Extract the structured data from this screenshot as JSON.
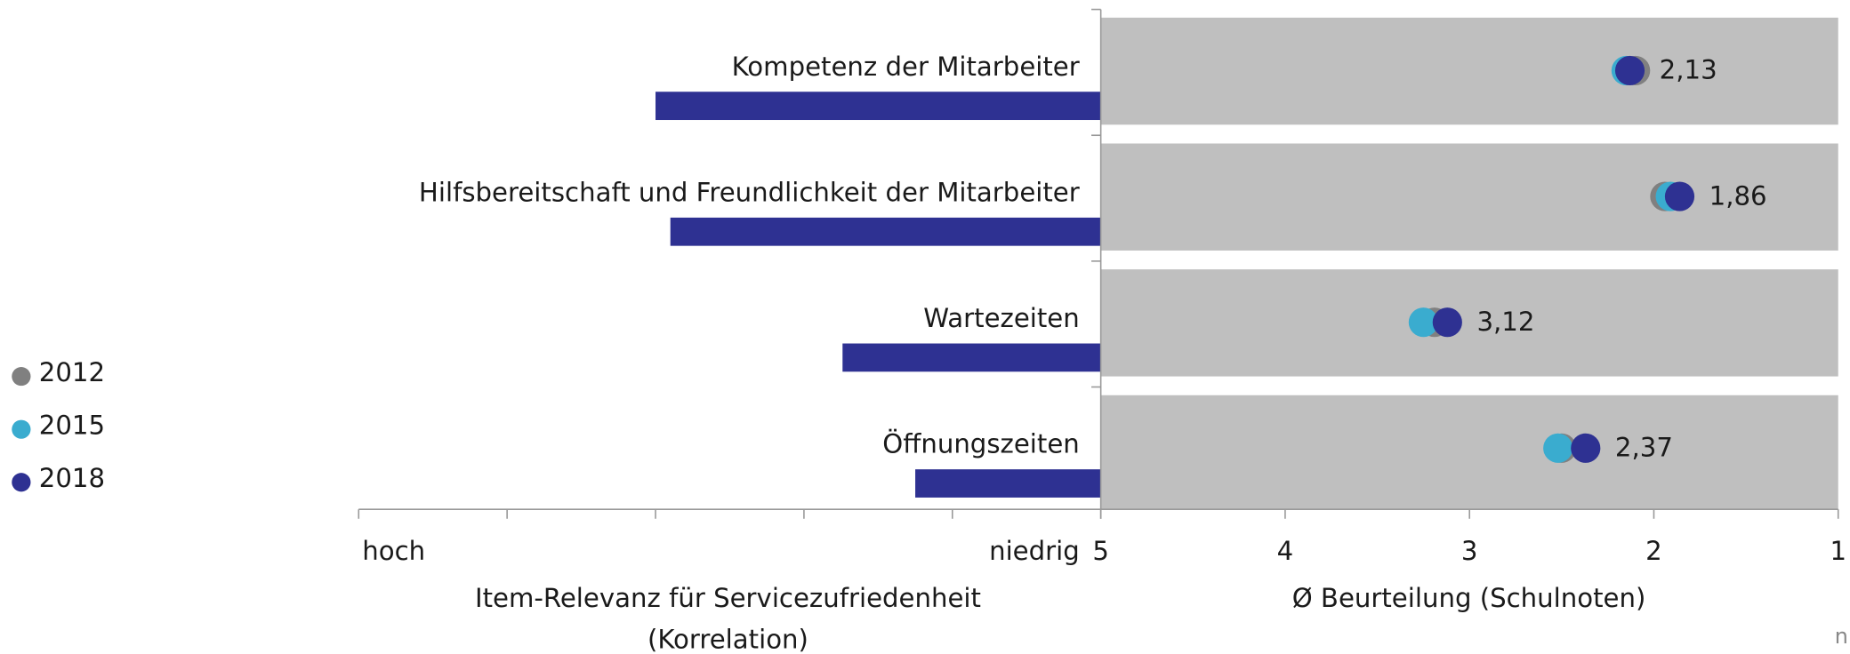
{
  "chart_data": [
    {
      "type": "hbar",
      "categories": [
        "Kompetenz der Mitarbeiter",
        "Hilfsbereitschaft und Freundlichkeit der Mitarbeiter",
        "Wartezeiten",
        "Öffnungszeiten"
      ],
      "values": [
        3.0,
        2.9,
        1.74,
        1.25
      ],
      "color": "#2e3192",
      "xlim": [
        5,
        0
      ],
      "xticks": [
        5,
        4,
        3,
        2,
        1,
        0
      ],
      "axis_end_labels": [
        "hoch",
        "niedrig"
      ],
      "xlabel": [
        "Item-Relevanz für Servicezufriedenheit",
        "(Korrelation)"
      ]
    },
    {
      "type": "dot",
      "series": [
        {
          "name": "2012",
          "color": "#808080",
          "values": [
            2.1,
            1.94,
            3.19,
            2.5
          ]
        },
        {
          "name": "2015",
          "color": "#3aaccf",
          "values": [
            2.15,
            1.91,
            3.25,
            2.52
          ]
        },
        {
          "name": "2018",
          "color": "#2e3192",
          "values": [
            2.13,
            1.86,
            3.12,
            2.37
          ],
          "value_labels": [
            "2,13",
            "1,86",
            "3,12",
            "2,37"
          ]
        }
      ],
      "band_color": "#bfbfbf",
      "xlim": [
        5,
        1
      ],
      "xticks": [
        5,
        4,
        3,
        2,
        1
      ],
      "xlabel": "Ø Beurteilung (Schulnoten)",
      "footnote": "n"
    }
  ]
}
